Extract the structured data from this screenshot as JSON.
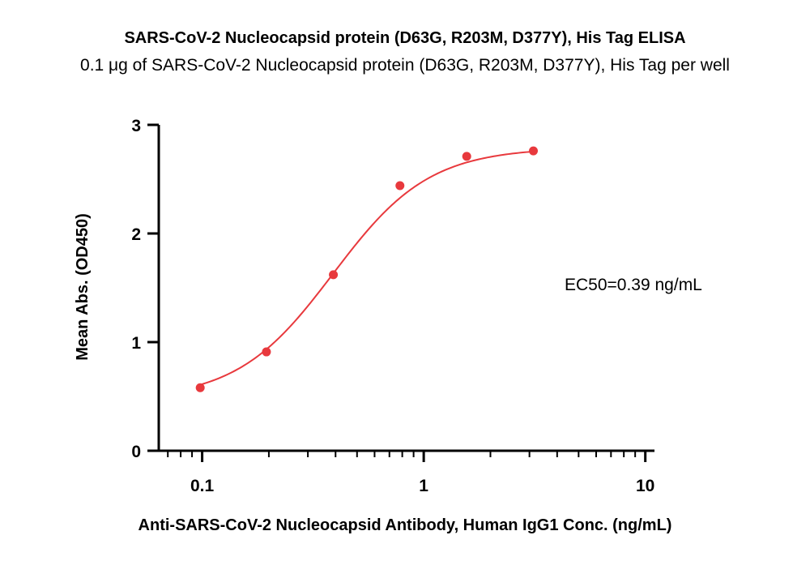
{
  "chart_data": {
    "type": "scatter",
    "title": "SARS-CoV-2 Nucleocapsid protein (D63G, R203M, D377Y), His Tag ELISA",
    "subtitle": "0.1 μg of SARS-CoV-2 Nucleocapsid protein (D63G, R203M, D377Y), His Tag per well",
    "xlabel": "Anti-SARS-CoV-2 Nucleocapsid Antibody, Human IgG1 Conc. (ng/mL)",
    "ylabel": "Mean Abs. (OD450)",
    "x_scale": "log",
    "xlim": [
      0.0637,
      11.0
    ],
    "ylim": [
      0,
      3
    ],
    "x_ticks": [
      0.1,
      1,
      10
    ],
    "x_tick_labels": [
      "0.1",
      "1",
      "10"
    ],
    "y_ticks": [
      0,
      1,
      2,
      3
    ],
    "y_tick_labels": [
      "0",
      "1",
      "2",
      "3"
    ],
    "grid": false,
    "legend": "none",
    "series": [
      {
        "x": [
          0.098,
          0.195,
          0.391,
          0.781,
          1.563,
          3.125
        ],
        "y": [
          0.58,
          0.91,
          1.62,
          2.44,
          2.71,
          2.76
        ],
        "fit": {
          "model": "4PL",
          "bottom": 0.47,
          "top": 2.79,
          "ec50": 0.39,
          "hill": 2.0,
          "x_range": [
            0.098,
            3.125
          ]
        }
      }
    ],
    "annotations": [
      {
        "text": "EC50=0.39 ng/mL"
      }
    ],
    "colors": {
      "series": "#e8393d",
      "axis": "#000000"
    }
  }
}
